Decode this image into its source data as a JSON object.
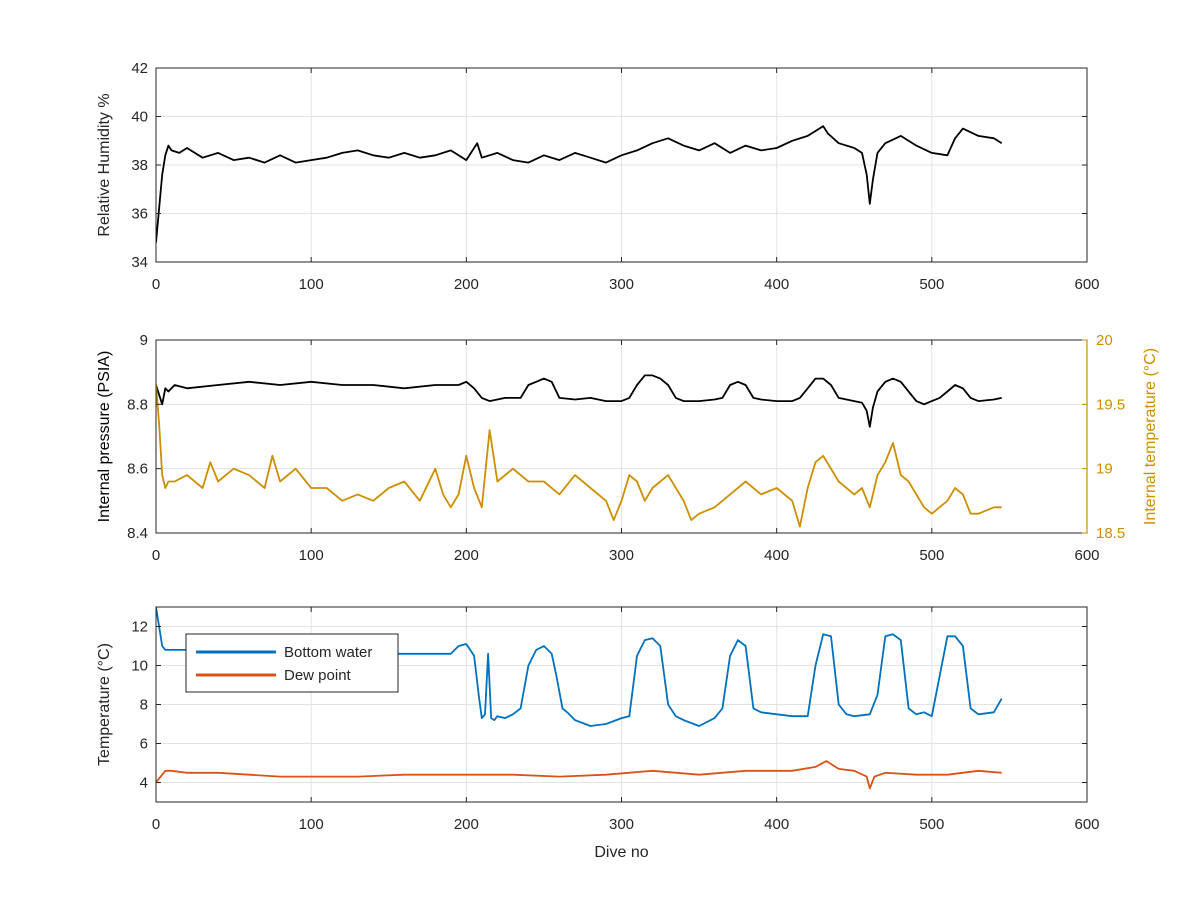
{
  "chart_data": [
    {
      "type": "line",
      "title": "",
      "xlabel": "",
      "ylabel": "Relative Humidity %",
      "xlim": [
        0,
        600
      ],
      "ylim": [
        34,
        42
      ],
      "xticks": [
        0,
        100,
        200,
        300,
        400,
        500,
        600
      ],
      "yticks": [
        34,
        36,
        38,
        40,
        42
      ],
      "grid": true,
      "series": [
        {
          "color": "#000000",
          "x": [
            0,
            2,
            4,
            6,
            8,
            10,
            15,
            20,
            30,
            40,
            50,
            60,
            70,
            80,
            90,
            100,
            110,
            120,
            130,
            140,
            150,
            160,
            170,
            180,
            190,
            200,
            207,
            210,
            220,
            230,
            240,
            250,
            260,
            270,
            280,
            290,
            300,
            310,
            320,
            330,
            340,
            350,
            360,
            370,
            380,
            390,
            400,
            410,
            420,
            430,
            433,
            440,
            450,
            455,
            458,
            460,
            462,
            465,
            470,
            480,
            490,
            500,
            510,
            515,
            520,
            530,
            540,
            545
          ],
          "y": [
            34.8,
            36.2,
            37.6,
            38.4,
            38.8,
            38.6,
            38.5,
            38.7,
            38.3,
            38.5,
            38.2,
            38.3,
            38.1,
            38.4,
            38.1,
            38.2,
            38.3,
            38.5,
            38.6,
            38.4,
            38.3,
            38.5,
            38.3,
            38.4,
            38.6,
            38.2,
            38.9,
            38.3,
            38.5,
            38.2,
            38.1,
            38.4,
            38.2,
            38.5,
            38.3,
            38.1,
            38.4,
            38.6,
            38.9,
            39.1,
            38.8,
            38.6,
            38.9,
            38.5,
            38.8,
            38.6,
            38.7,
            39.0,
            39.2,
            39.6,
            39.3,
            38.9,
            38.7,
            38.5,
            37.6,
            36.4,
            37.4,
            38.5,
            38.9,
            39.2,
            38.8,
            38.5,
            38.4,
            39.1,
            39.5,
            39.2,
            39.1,
            38.9
          ]
        }
      ]
    },
    {
      "type": "line",
      "title": "",
      "xlabel": "",
      "ylabel": "Internal pressure (PSIA)",
      "ylabel_right": "Internal temperature (°C)",
      "xlim": [
        0,
        600
      ],
      "ylim": [
        8.4,
        9
      ],
      "ylim_right": [
        18.5,
        20
      ],
      "xticks": [
        0,
        100,
        200,
        300,
        400,
        500,
        600
      ],
      "yticks": [
        8.4,
        8.6,
        8.8,
        9
      ],
      "yticks_right": [
        18.5,
        19,
        19.5,
        20
      ],
      "grid": true,
      "series": [
        {
          "axis": "left",
          "color": "#000000",
          "x": [
            0,
            2,
            4,
            6,
            8,
            12,
            20,
            40,
            60,
            80,
            100,
            120,
            140,
            160,
            180,
            195,
            200,
            205,
            210,
            215,
            225,
            235,
            240,
            245,
            250,
            255,
            260,
            270,
            280,
            290,
            300,
            305,
            310,
            315,
            320,
            325,
            330,
            335,
            340,
            350,
            360,
            365,
            370,
            375,
            380,
            385,
            390,
            400,
            410,
            415,
            420,
            425,
            430,
            435,
            440,
            445,
            450,
            455,
            458,
            460,
            462,
            465,
            470,
            475,
            480,
            485,
            490,
            495,
            500,
            505,
            510,
            515,
            520,
            525,
            530,
            540,
            545
          ],
          "y": [
            8.86,
            8.83,
            8.8,
            8.85,
            8.84,
            8.86,
            8.85,
            8.86,
            8.87,
            8.86,
            8.87,
            8.86,
            8.86,
            8.85,
            8.86,
            8.86,
            8.87,
            8.85,
            8.82,
            8.81,
            8.82,
            8.82,
            8.86,
            8.87,
            8.88,
            8.87,
            8.82,
            8.815,
            8.82,
            8.81,
            8.81,
            8.82,
            8.86,
            8.89,
            8.89,
            8.88,
            8.86,
            8.82,
            8.81,
            8.81,
            8.815,
            8.82,
            8.86,
            8.87,
            8.86,
            8.82,
            8.815,
            8.81,
            8.81,
            8.82,
            8.85,
            8.88,
            8.88,
            8.86,
            8.82,
            8.815,
            8.81,
            8.805,
            8.78,
            8.73,
            8.79,
            8.84,
            8.87,
            8.88,
            8.87,
            8.84,
            8.81,
            8.8,
            8.81,
            8.82,
            8.84,
            8.86,
            8.85,
            8.82,
            8.81,
            8.815,
            8.82
          ]
        },
        {
          "axis": "right",
          "color": "#cc8f00",
          "x": [
            0,
            2,
            4,
            6,
            8,
            12,
            20,
            30,
            35,
            40,
            50,
            60,
            70,
            75,
            80,
            90,
            100,
            110,
            120,
            130,
            140,
            150,
            160,
            170,
            180,
            185,
            190,
            195,
            200,
            205,
            210,
            215,
            220,
            230,
            240,
            250,
            260,
            270,
            280,
            290,
            295,
            300,
            305,
            310,
            315,
            320,
            330,
            340,
            345,
            350,
            360,
            370,
            380,
            390,
            400,
            410,
            415,
            420,
            425,
            430,
            440,
            450,
            455,
            460,
            465,
            470,
            475,
            480,
            485,
            490,
            495,
            500,
            510,
            515,
            520,
            525,
            530,
            540,
            545
          ],
          "y": [
            19.65,
            19.35,
            18.95,
            18.85,
            18.9,
            18.9,
            18.95,
            18.85,
            19.05,
            18.9,
            19.0,
            18.95,
            18.85,
            19.1,
            18.9,
            19.0,
            18.85,
            18.85,
            18.75,
            18.8,
            18.75,
            18.85,
            18.9,
            18.75,
            19.0,
            18.8,
            18.7,
            18.8,
            19.1,
            18.85,
            18.7,
            19.3,
            18.9,
            19.0,
            18.9,
            18.9,
            18.8,
            18.95,
            18.85,
            18.75,
            18.6,
            18.75,
            18.95,
            18.9,
            18.75,
            18.85,
            18.95,
            18.75,
            18.6,
            18.65,
            18.7,
            18.8,
            18.9,
            18.8,
            18.85,
            18.75,
            18.55,
            18.85,
            19.05,
            19.1,
            18.9,
            18.8,
            18.85,
            18.7,
            18.95,
            19.05,
            19.2,
            18.95,
            18.9,
            18.8,
            18.7,
            18.65,
            18.75,
            18.85,
            18.8,
            18.65,
            18.65,
            18.7,
            18.7
          ]
        }
      ]
    },
    {
      "type": "line",
      "title": "",
      "xlabel": "Dive no",
      "ylabel": "Temperature (°C)",
      "xlim": [
        0,
        600
      ],
      "ylim": [
        3,
        13
      ],
      "xticks": [
        0,
        100,
        200,
        300,
        400,
        500,
        600
      ],
      "yticks": [
        4,
        6,
        8,
        10,
        12
      ],
      "grid": true,
      "legend": "top-left",
      "series": [
        {
          "name": "Bottom water",
          "color": "#0072bd",
          "x": [
            0,
            2,
            4,
            6,
            10,
            20,
            50,
            100,
            150,
            180,
            190,
            195,
            200,
            205,
            208,
            210,
            212,
            214,
            216,
            218,
            220,
            225,
            230,
            235,
            240,
            245,
            250,
            255,
            258,
            262,
            265,
            270,
            280,
            290,
            300,
            305,
            310,
            315,
            320,
            325,
            330,
            335,
            340,
            350,
            360,
            365,
            370,
            375,
            380,
            385,
            390,
            400,
            410,
            420,
            425,
            430,
            435,
            440,
            445,
            450,
            460,
            465,
            470,
            475,
            480,
            485,
            490,
            495,
            500,
            510,
            515,
            520,
            525,
            530,
            540,
            545
          ],
          "y": [
            13.0,
            12.0,
            11.0,
            10.8,
            10.8,
            10.8,
            10.7,
            10.7,
            10.6,
            10.6,
            10.6,
            11.0,
            11.1,
            10.5,
            8.5,
            7.3,
            7.5,
            10.6,
            7.3,
            7.2,
            7.4,
            7.3,
            7.5,
            7.8,
            10.0,
            10.8,
            11.0,
            10.6,
            9.5,
            7.8,
            7.6,
            7.2,
            6.9,
            7.0,
            7.3,
            7.4,
            10.5,
            11.3,
            11.4,
            11.0,
            8.0,
            7.4,
            7.2,
            6.9,
            7.3,
            7.8,
            10.5,
            11.3,
            11.0,
            7.8,
            7.6,
            7.5,
            7.4,
            7.4,
            10.0,
            11.6,
            11.5,
            8.0,
            7.5,
            7.4,
            7.5,
            8.5,
            11.5,
            11.6,
            11.3,
            7.8,
            7.5,
            7.6,
            7.4,
            11.5,
            11.5,
            11.0,
            7.8,
            7.5,
            7.6,
            8.3
          ]
        },
        {
          "name": "Dew point",
          "color": "#d95319",
          "x": [
            0,
            3,
            6,
            10,
            20,
            40,
            60,
            80,
            100,
            130,
            160,
            200,
            230,
            260,
            290,
            320,
            350,
            380,
            410,
            425,
            432,
            440,
            450,
            458,
            460,
            463,
            470,
            490,
            510,
            530,
            545
          ],
          "y": [
            4.0,
            4.3,
            4.6,
            4.6,
            4.5,
            4.5,
            4.4,
            4.3,
            4.3,
            4.3,
            4.4,
            4.4,
            4.4,
            4.3,
            4.4,
            4.6,
            4.4,
            4.6,
            4.6,
            4.8,
            5.1,
            4.7,
            4.6,
            4.3,
            3.7,
            4.3,
            4.5,
            4.4,
            4.4,
            4.6,
            4.5
          ]
        }
      ]
    }
  ]
}
